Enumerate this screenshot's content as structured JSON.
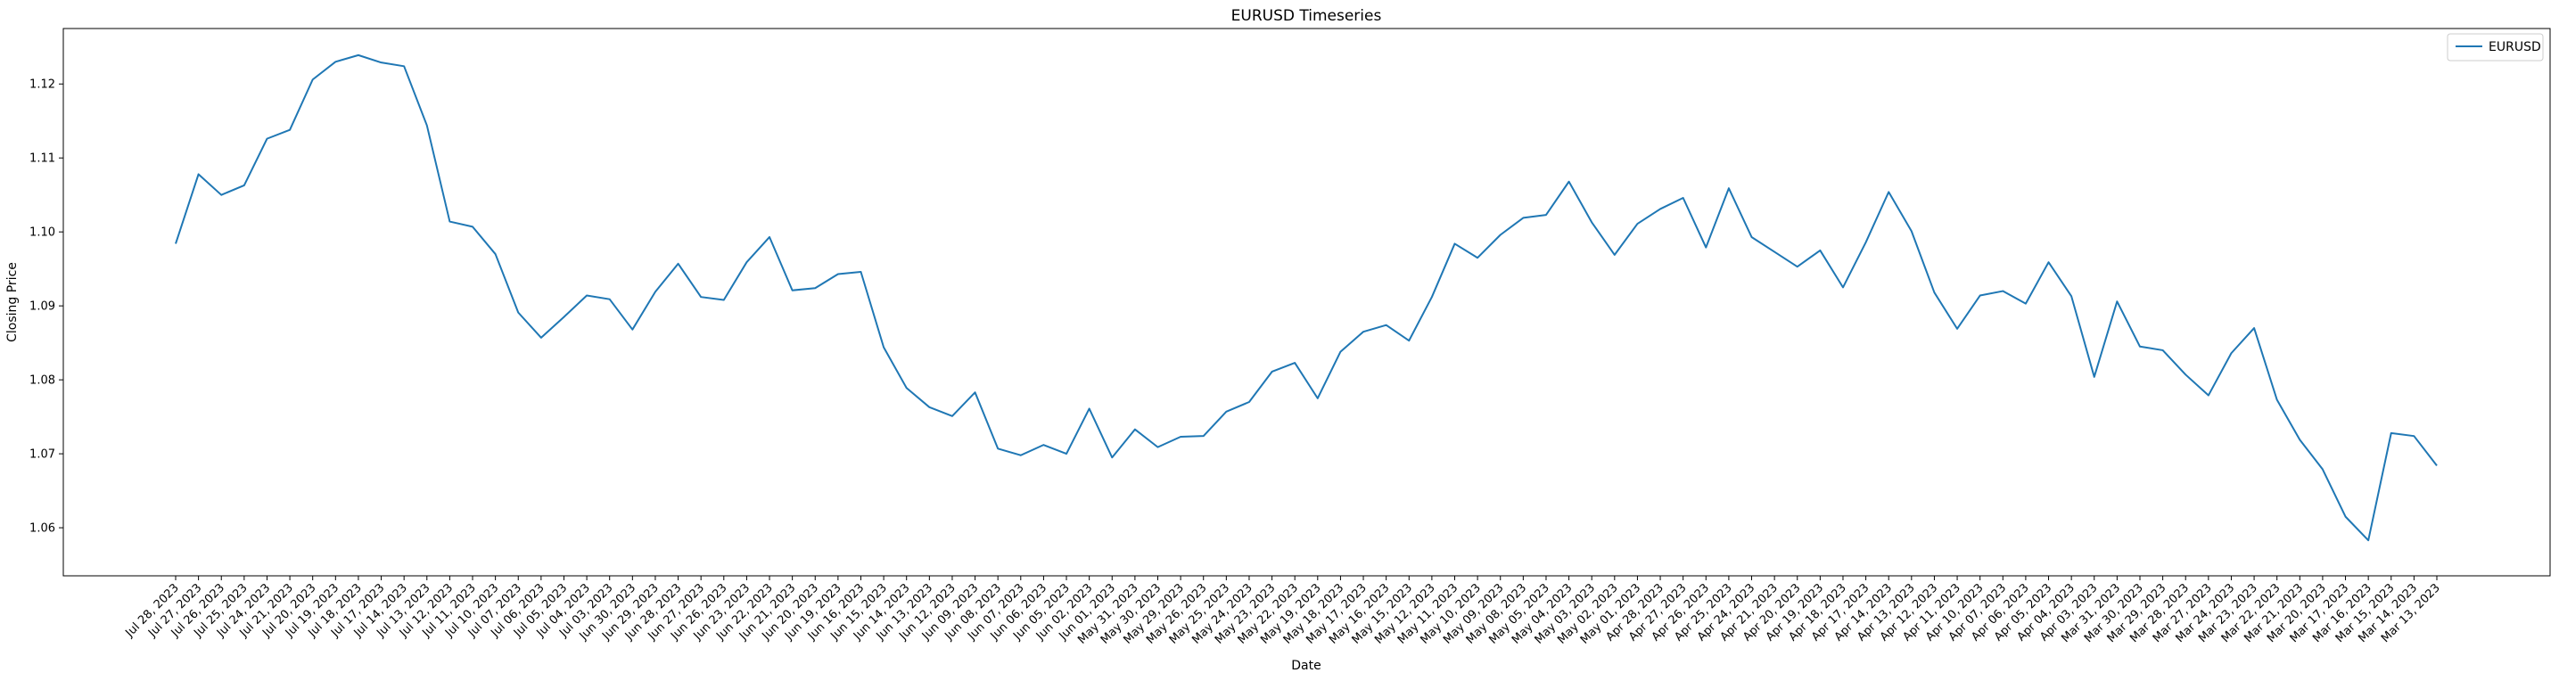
{
  "chart_data": {
    "type": "line",
    "title": "EURUSD Timeseries",
    "xlabel": "Date",
    "ylabel": "Closing Price",
    "ylim": [
      1.0535,
      1.1275
    ],
    "yticks": [
      "1.06",
      "1.07",
      "1.08",
      "1.09",
      "1.10",
      "1.11",
      "1.12"
    ],
    "ytick_values": [
      1.06,
      1.07,
      1.08,
      1.09,
      1.1,
      1.11,
      1.12
    ],
    "grid": false,
    "legend_position": "top-right",
    "line_color": "#1f77b4",
    "x": [
      "Jul 28, 2023",
      "Jul 27, 2023",
      "Jul 26, 2023",
      "Jul 25, 2023",
      "Jul 24, 2023",
      "Jul 21, 2023",
      "Jul 20, 2023",
      "Jul 19, 2023",
      "Jul 18, 2023",
      "Jul 17, 2023",
      "Jul 14, 2023",
      "Jul 13, 2023",
      "Jul 12, 2023",
      "Jul 11, 2023",
      "Jul 10, 2023",
      "Jul 07, 2023",
      "Jul 06, 2023",
      "Jul 05, 2023",
      "Jul 04, 2023",
      "Jul 03, 2023",
      "Jun 30, 2023",
      "Jun 29, 2023",
      "Jun 28, 2023",
      "Jun 27, 2023",
      "Jun 26, 2023",
      "Jun 23, 2023",
      "Jun 22, 2023",
      "Jun 21, 2023",
      "Jun 20, 2023",
      "Jun 19, 2023",
      "Jun 16, 2023",
      "Jun 15, 2023",
      "Jun 14, 2023",
      "Jun 13, 2023",
      "Jun 12, 2023",
      "Jun 09, 2023",
      "Jun 08, 2023",
      "Jun 07, 2023",
      "Jun 06, 2023",
      "Jun 05, 2023",
      "Jun 02, 2023",
      "Jun 01, 2023",
      "May 31, 2023",
      "May 30, 2023",
      "May 29, 2023",
      "May 26, 2023",
      "May 25, 2023",
      "May 24, 2023",
      "May 23, 2023",
      "May 22, 2023",
      "May 19, 2023",
      "May 18, 2023",
      "May 17, 2023",
      "May 16, 2023",
      "May 15, 2023",
      "May 12, 2023",
      "May 11, 2023",
      "May 10, 2023",
      "May 09, 2023",
      "May 08, 2023",
      "May 05, 2023",
      "May 04, 2023",
      "May 03, 2023",
      "May 02, 2023",
      "May 01, 2023",
      "Apr 28, 2023",
      "Apr 27, 2023",
      "Apr 26, 2023",
      "Apr 25, 2023",
      "Apr 24, 2023",
      "Apr 21, 2023",
      "Apr 20, 2023",
      "Apr 19, 2023",
      "Apr 18, 2023",
      "Apr 17, 2023",
      "Apr 14, 2023",
      "Apr 13, 2023",
      "Apr 12, 2023",
      "Apr 11, 2023",
      "Apr 10, 2023",
      "Apr 07, 2023",
      "Apr 06, 2023",
      "Apr 05, 2023",
      "Apr 04, 2023",
      "Apr 03, 2023",
      "Mar 31, 2023",
      "Mar 30, 2023",
      "Mar 29, 2023",
      "Mar 28, 2023",
      "Mar 27, 2023",
      "Mar 24, 2023",
      "Mar 23, 2023",
      "Mar 22, 2023",
      "Mar 21, 2023",
      "Mar 20, 2023",
      "Mar 17, 2023",
      "Mar 16, 2023",
      "Mar 15, 2023",
      "Mar 14, 2023",
      "Mar 13, 2023"
    ],
    "series": [
      {
        "name": "EURUSD",
        "values": [
          1.0984,
          1.1078,
          1.105,
          1.1063,
          1.1126,
          1.1138,
          1.1206,
          1.123,
          1.1239,
          1.1229,
          1.1224,
          1.1144,
          1.1014,
          1.1007,
          1.097,
          1.0891,
          1.0857,
          1.0885,
          1.0914,
          1.0909,
          1.0868,
          1.0919,
          1.0957,
          1.0912,
          1.0908,
          1.0959,
          1.0993,
          1.0921,
          1.0924,
          1.0943,
          1.0946,
          1.0844,
          1.0789,
          1.0763,
          1.0751,
          1.0783,
          1.0707,
          1.0698,
          1.0712,
          1.07,
          1.0761,
          1.0695,
          1.0733,
          1.0709,
          1.0723,
          1.0724,
          1.0757,
          1.077,
          1.0811,
          1.0823,
          1.0775,
          1.0838,
          1.0865,
          1.0874,
          1.0853,
          1.0912,
          1.0984,
          1.0965,
          1.0996,
          1.1019,
          1.1023,
          1.1068,
          1.1013,
          1.0969,
          1.1011,
          1.1031,
          1.1046,
          1.0979,
          1.1059,
          1.0993,
          1.0973,
          1.0953,
          1.0975,
          1.0925,
          1.0986,
          1.1054,
          1.1001,
          1.0918,
          1.0869,
          1.0914,
          1.092,
          1.0903,
          1.0959,
          1.0913,
          1.0804,
          1.0906,
          1.0845,
          1.084,
          1.0807,
          1.0779,
          1.0836,
          1.087,
          1.0773,
          1.0719,
          1.0679,
          1.0615,
          1.0583,
          1.0728,
          1.0724,
          1.0684
        ]
      }
    ]
  }
}
